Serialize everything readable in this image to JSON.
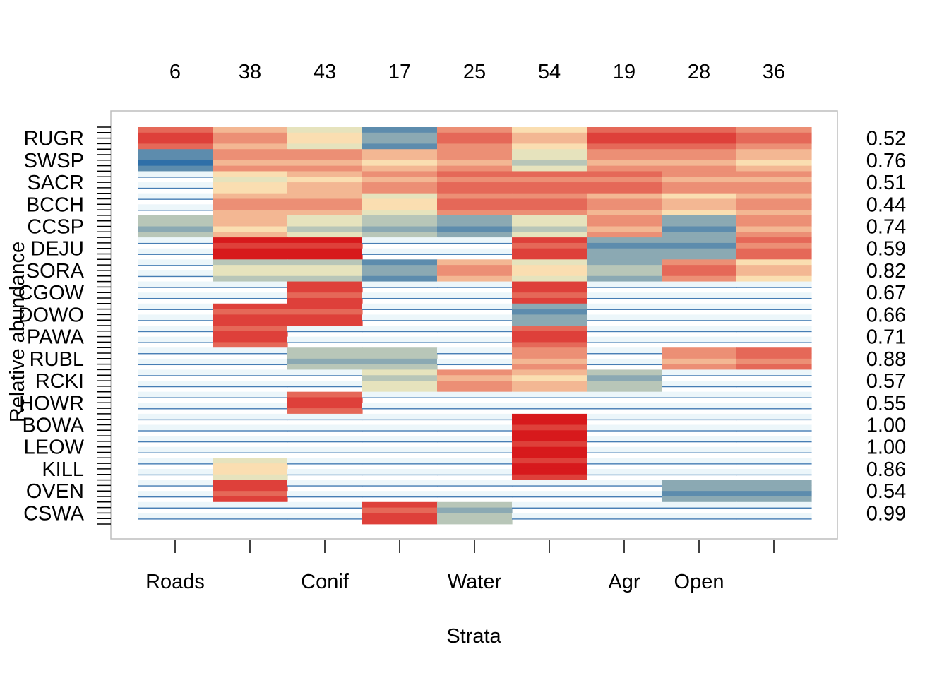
{
  "chart_data": {
    "type": "heatmap",
    "title": "",
    "xlabel": "Strata",
    "ylabel": "Relative abundance",
    "site_counts": [
      "6",
      "38",
      "43",
      "17",
      "25",
      "54",
      "19",
      "28",
      "36"
    ],
    "stratum_labels": [
      "Roads",
      "",
      "Conif",
      "",
      "Water",
      "",
      "Agr",
      "Open",
      ""
    ],
    "species": [
      "RUGR",
      "SWSP",
      "SACR",
      "BCCH",
      "CCSP",
      "DEJU",
      "SORA",
      "CGOW",
      "DOWO",
      "PAWA",
      "RUBL",
      "RCKI",
      "HOWR",
      "BOWA",
      "LEOW",
      "KILL",
      "OVEN",
      "CSWA"
    ],
    "indicator_values": [
      "0.52",
      "0.76",
      "0.51",
      "0.44",
      "0.74",
      "0.59",
      "0.82",
      "0.67",
      "0.66",
      "0.71",
      "0.88",
      "0.57",
      "0.55",
      "1.00",
      "1.00",
      "0.86",
      "0.54",
      "0.99"
    ],
    "scale": {
      "levels": 10,
      "low_color": "#2f6fa8",
      "mid_color": "#fdf2c0",
      "high_color": "#d7191c"
    },
    "cells": {
      "RUGR": [
        9,
        7,
        5,
        2,
        8,
        6,
        9,
        9,
        8
      ],
      "SWSP": [
        1,
        7,
        7,
        6,
        7,
        4,
        7,
        7,
        6
      ],
      "SACR": [
        0,
        5,
        6,
        7,
        8,
        8,
        8,
        7,
        7
      ],
      "BCCH": [
        0,
        7,
        7,
        5,
        8,
        8,
        7,
        6,
        7
      ],
      "CCSP": [
        3,
        6,
        4,
        3,
        2,
        4,
        7,
        2,
        7
      ],
      "DEJU": [
        0,
        10,
        10,
        0,
        0,
        9,
        2,
        2,
        8
      ],
      "SORA": [
        0,
        4,
        4,
        2,
        7,
        5,
        3,
        8,
        6
      ],
      "CGOW": [
        0,
        0,
        9,
        0,
        0,
        9,
        0,
        0,
        0
      ],
      "DOWO": [
        0,
        9,
        9,
        0,
        0,
        2,
        0,
        0,
        0
      ],
      "PAWA": [
        0,
        9,
        0,
        0,
        0,
        9,
        0,
        0,
        0
      ],
      "RUBL": [
        0,
        0,
        3,
        3,
        0,
        7,
        0,
        7,
        8
      ],
      "RCKI": [
        0,
        0,
        0,
        4,
        7,
        6,
        3,
        0,
        0
      ],
      "HOWR": [
        0,
        0,
        9,
        0,
        0,
        0,
        0,
        0,
        0
      ],
      "BOWA": [
        0,
        0,
        0,
        0,
        0,
        10,
        0,
        0,
        0
      ],
      "LEOW": [
        0,
        0,
        0,
        0,
        0,
        10,
        0,
        0,
        0
      ],
      "KILL": [
        0,
        5,
        0,
        0,
        0,
        10,
        0,
        0,
        0
      ],
      "OVEN": [
        0,
        9,
        0,
        0,
        0,
        0,
        0,
        2,
        2
      ],
      "CSWA": [
        0,
        0,
        0,
        9,
        3,
        0,
        0,
        0,
        0
      ]
    },
    "grid": false,
    "legend": "none"
  }
}
